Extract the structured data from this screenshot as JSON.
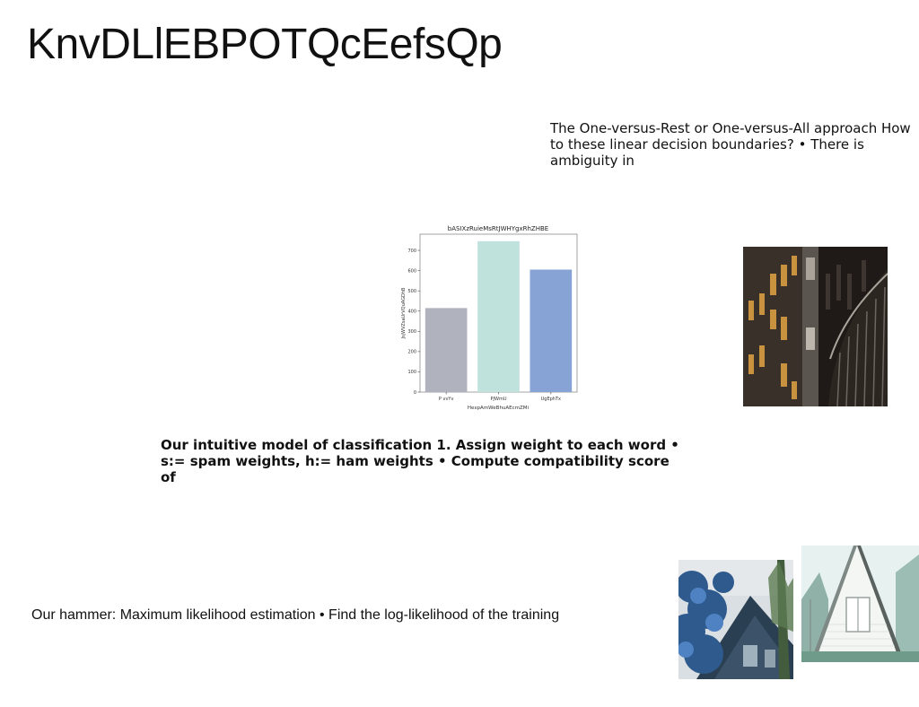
{
  "slide": {
    "title": "KnvDLlEBPOTQcEefsQp",
    "text_top": "The One-versus-Rest or One-versus-All approach How to these linear decision boundaries? • There is ambiguity in",
    "text_mid": "Our intuitive model of classification 1. Assign weight to each word • s:= spam weights, h:= ham weights • Compute compatibility score of",
    "text_bottom": "Our hammer: Maximum likelihood estimation • Find the log-likelihood of the training"
  },
  "images": {
    "building": "photo-building-facade",
    "cabin_blue": "photo-cabin-blue-trees",
    "cabin_white": "photo-white-a-frame-house"
  },
  "chart_data": {
    "type": "bar",
    "title": "bASIXzRuieMsRtJWHYgxRhZHBE",
    "xlabel": "HexpAmWeBhuAEcmZMi",
    "ylabel": "JsjWVZsaUrVQuAGDhB",
    "categories": [
      "P vvYv",
      "PJWmU",
      "UgEphTx"
    ],
    "values": [
      415,
      745,
      605
    ],
    "colors": [
      "#b0b3bd",
      "#c0e2dc",
      "#87a2d4"
    ],
    "ylim": [
      0,
      780
    ],
    "yticks": [
      0,
      100,
      200,
      300,
      400,
      500,
      600,
      700
    ],
    "grid": false
  }
}
